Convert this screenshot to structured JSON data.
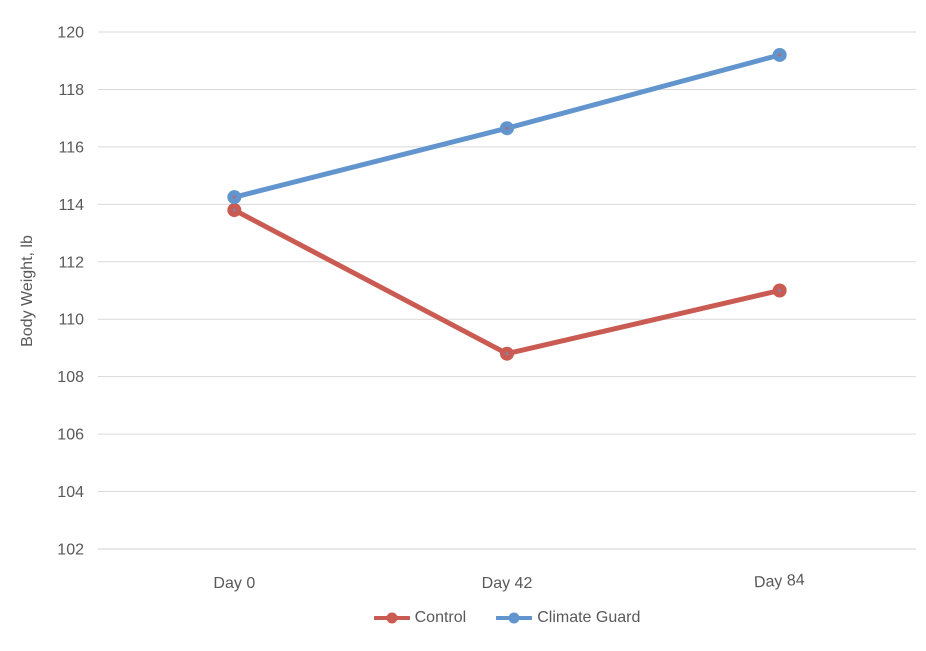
{
  "chart_data": {
    "type": "line",
    "categories": [
      "Day 0",
      "Day 42",
      "Day 84"
    ],
    "series": [
      {
        "name": "Control",
        "values": [
          113.8,
          108.8,
          111.0
        ],
        "color": "#CA5B52"
      },
      {
        "name": "Climate Guard",
        "values": [
          114.25,
          116.65,
          119.2
        ],
        "color": "#6295CE"
      }
    ],
    "title": "",
    "xlabel": "",
    "ylabel": "Body Weight, lb",
    "ylim": [
      102,
      120
    ],
    "ytick_step": 2,
    "grid": true,
    "legend_position": "bottom",
    "background_color": "#FFFFFF",
    "text_color": "#595959",
    "gridline_color": "#D9D9D9",
    "axis_line_color": "#D2D2D2",
    "xtick_tilt_deg": [
      0,
      0,
      -3
    ]
  }
}
